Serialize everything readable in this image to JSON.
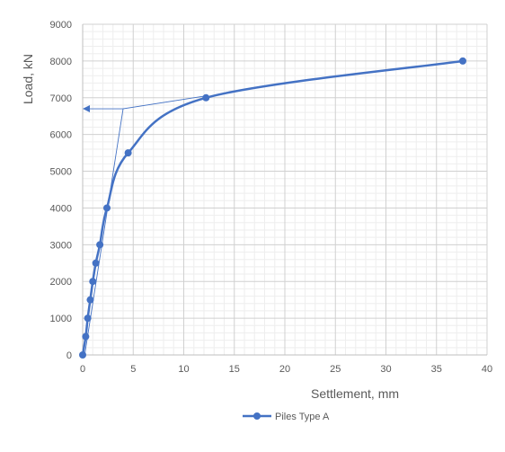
{
  "chart_data": {
    "type": "scatter",
    "title": "",
    "xlabel": "Settlement, mm",
    "ylabel": "Load, kN",
    "xlim": [
      0,
      40
    ],
    "ylim": [
      0,
      9000
    ],
    "x_ticks": [
      0,
      5,
      10,
      15,
      20,
      25,
      30,
      35,
      40
    ],
    "y_ticks": [
      0,
      1000,
      2000,
      3000,
      4000,
      5000,
      6000,
      7000,
      8000,
      9000
    ],
    "x_minor_step": 1,
    "y_minor_step": 200,
    "grid": true,
    "legend_position": "bottom",
    "series": [
      {
        "name": "Piles Type A",
        "color": "#4472C4",
        "marker": "circle",
        "line": "smooth",
        "x": [
          0,
          0.3,
          0.5,
          0.75,
          1.0,
          1.3,
          1.7,
          2.4,
          4.5,
          12.2,
          37.6
        ],
        "y": [
          0,
          500,
          1000,
          1500,
          2000,
          2500,
          3000,
          4000,
          5500,
          7000,
          8000
        ]
      }
    ],
    "annotations": [
      {
        "type": "construction_lines",
        "color": "#4472C4",
        "points": [
          [
            0.2,
            0
          ],
          [
            4.0,
            6700
          ],
          [
            12.2,
            7050
          ]
        ],
        "arrow_from": [
          4.0,
          6700
        ],
        "arrow_to": [
          0,
          6700
        ]
      }
    ]
  }
}
